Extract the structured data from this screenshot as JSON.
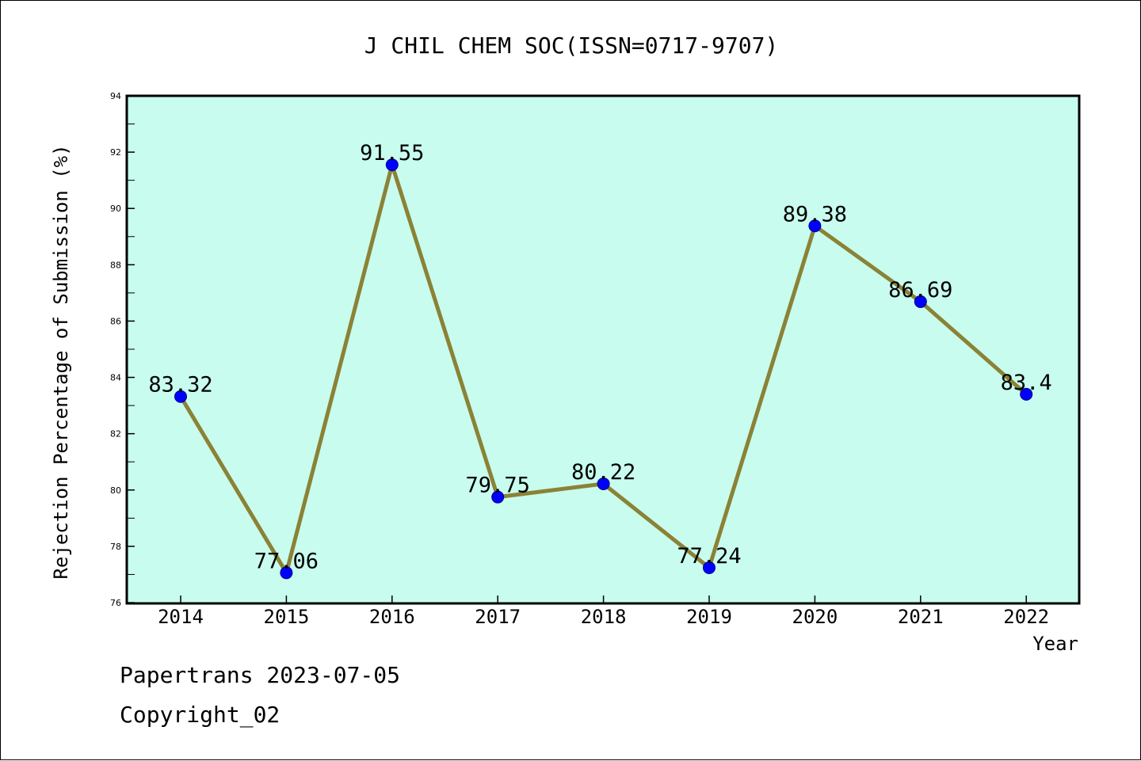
{
  "chart_data": {
    "type": "line",
    "title": "J CHIL CHEM SOC(ISSN=0717-9707)",
    "xlabel": "Year",
    "ylabel": "Rejection Percentage of Submission (%)",
    "categories": [
      "2014",
      "2015",
      "2016",
      "2017",
      "2018",
      "2019",
      "2020",
      "2021",
      "2022"
    ],
    "series": [
      {
        "values": [
          83.32,
          77.06,
          91.55,
          79.75,
          80.22,
          77.24,
          89.38,
          86.69,
          83.4
        ],
        "labels": [
          "83.32",
          "77.06",
          "91.55",
          "79.75",
          "80.22",
          "77.24",
          "89.38",
          "86.69",
          "83.4"
        ]
      }
    ],
    "ylim": [
      76,
      94
    ],
    "yticks": [
      "76",
      "78",
      "80",
      "82",
      "84",
      "86",
      "88",
      "90",
      "92",
      "94"
    ],
    "grid": false,
    "colors": {
      "plot_background": "#c8fcee",
      "line": "#8b8236",
      "marker": "#0000ff"
    }
  },
  "footer": {
    "line1": "Papertrans 2023-07-05",
    "line2": "Copyright_02"
  }
}
